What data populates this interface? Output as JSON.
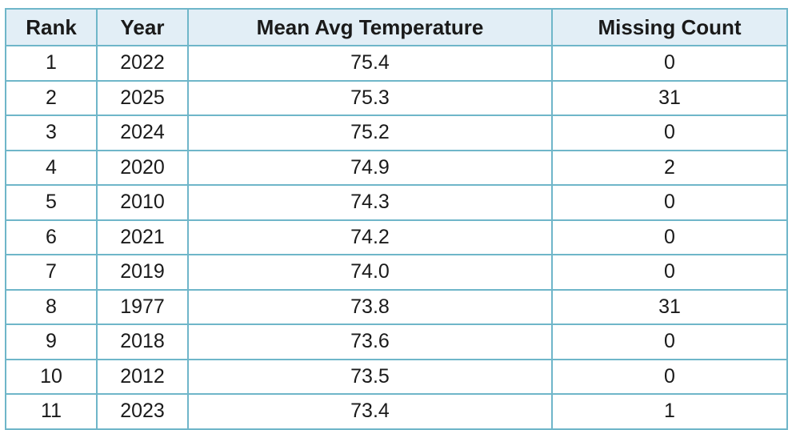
{
  "table": {
    "headers": [
      "Rank",
      "Year",
      "Mean Avg Temperature",
      "Missing Count"
    ],
    "rows": [
      [
        "1",
        "2022",
        "75.4",
        "0"
      ],
      [
        "2",
        "2025",
        "75.3",
        "31"
      ],
      [
        "3",
        "2024",
        "75.2",
        "0"
      ],
      [
        "4",
        "2020",
        "74.9",
        "2"
      ],
      [
        "5",
        "2010",
        "74.3",
        "0"
      ],
      [
        "6",
        "2021",
        "74.2",
        "0"
      ],
      [
        "7",
        "2019",
        "74.0",
        "0"
      ],
      [
        "8",
        "1977",
        "73.8",
        "31"
      ],
      [
        "9",
        "2018",
        "73.6",
        "0"
      ],
      [
        "10",
        "2012",
        "73.5",
        "0"
      ],
      [
        "11",
        "2023",
        "73.4",
        "1"
      ]
    ]
  }
}
